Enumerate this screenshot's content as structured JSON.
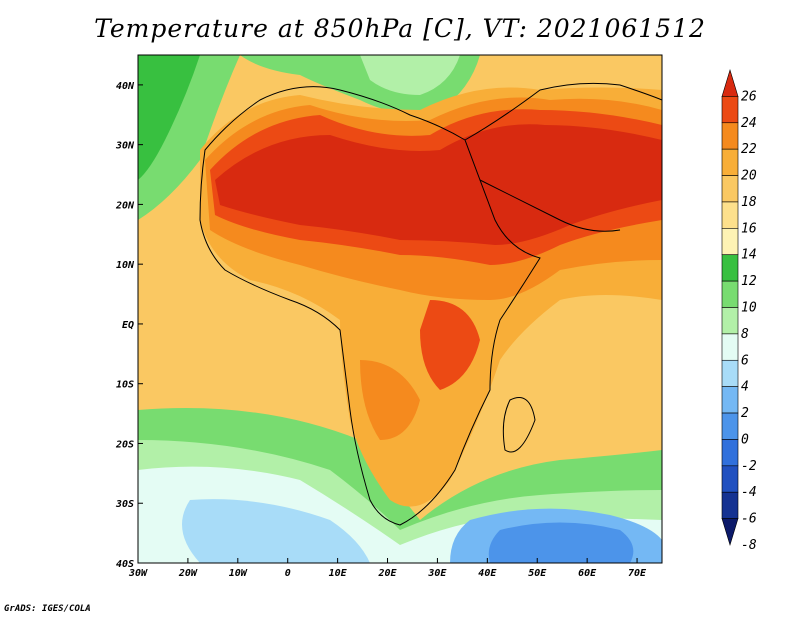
{
  "title": "Temperature at 850hPa [C], VT: 2021061512",
  "credit": "GrADS: IGES/COLA",
  "map": {
    "lon_range": [
      -30,
      75
    ],
    "lat_range": [
      -40,
      45
    ],
    "lon_ticks": [
      {
        "value": -30,
        "label": "30W"
      },
      {
        "value": -20,
        "label": "20W"
      },
      {
        "value": -10,
        "label": "10W"
      },
      {
        "value": 0,
        "label": "0"
      },
      {
        "value": 10,
        "label": "10E"
      },
      {
        "value": 20,
        "label": "20E"
      },
      {
        "value": 30,
        "label": "30E"
      },
      {
        "value": 40,
        "label": "40E"
      },
      {
        "value": 50,
        "label": "50E"
      },
      {
        "value": 60,
        "label": "60E"
      },
      {
        "value": 70,
        "label": "70E"
      }
    ],
    "lat_ticks": [
      {
        "value": 40,
        "label": "40N"
      },
      {
        "value": 30,
        "label": "30N"
      },
      {
        "value": 20,
        "label": "20N"
      },
      {
        "value": 10,
        "label": "10N"
      },
      {
        "value": 0,
        "label": "EQ"
      },
      {
        "value": -10,
        "label": "10S"
      },
      {
        "value": -20,
        "label": "20S"
      },
      {
        "value": -30,
        "label": "30S"
      },
      {
        "value": -40,
        "label": "40S"
      }
    ]
  },
  "colorbar": {
    "labels": [
      "26",
      "24",
      "22",
      "20",
      "18",
      "16",
      "14",
      "12",
      "10",
      "8",
      "6",
      "4",
      "2",
      "0",
      "-2",
      "-4",
      "-6",
      "-8"
    ],
    "colors": [
      "#d82a10",
      "#ec4a14",
      "#f58a1e",
      "#f8ae38",
      "#fac862",
      "#fde08c",
      "#fef3b4",
      "#38c040",
      "#78dc70",
      "#b2f0a8",
      "#e4fcf4",
      "#a8dcf8",
      "#74b8f4",
      "#4c94ea",
      "#3070dc",
      "#2050c0",
      "#143292",
      "#0c1a6a"
    ]
  }
}
